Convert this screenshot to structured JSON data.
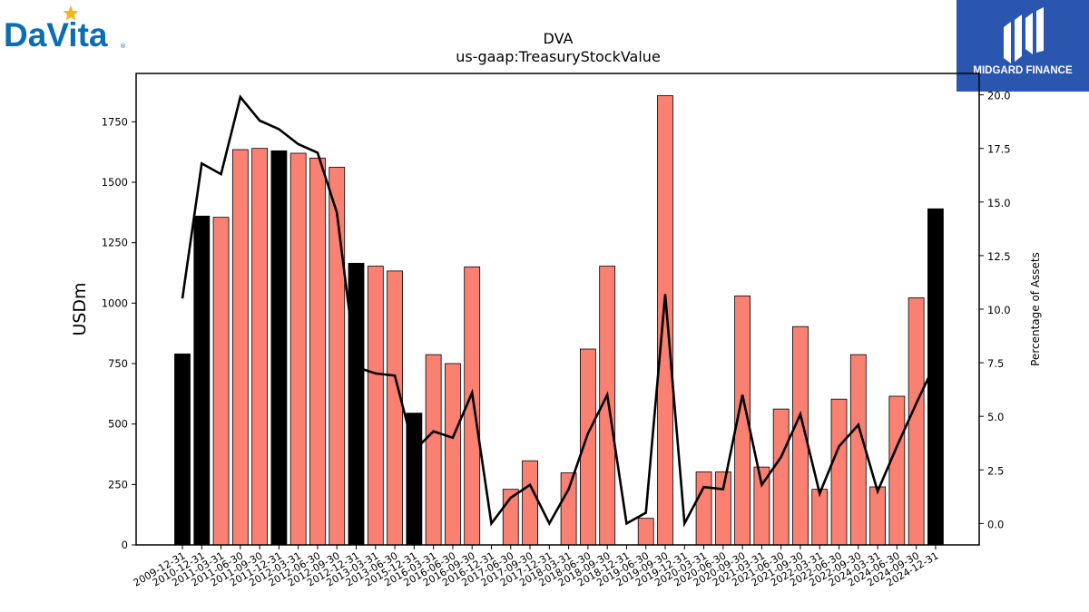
{
  "logos": {
    "left_text": "DaVita",
    "right_text": "MIDGARD FINANCE"
  },
  "colors": {
    "bar_normal": "#fa8072",
    "bar_highlight": "#000000",
    "line": "#000000",
    "brand_blue": "#0a6db5",
    "brand_star": "#f5b41a",
    "midgard_bg": "#2a56b0"
  },
  "chart_data": {
    "type": "bar",
    "title": "DVA",
    "subtitle": "us-gaap:TreasuryStockValue",
    "ylabel": "USDm",
    "y2label": "Percentage of Assets",
    "ylim": [
      0,
      1950
    ],
    "y2lim": [
      -1.0,
      21.0
    ],
    "yticks": [
      0,
      250,
      500,
      750,
      1000,
      1250,
      1500,
      1750
    ],
    "y2ticks": [
      0.0,
      2.5,
      5.0,
      7.5,
      10.0,
      12.5,
      15.0,
      17.5,
      20.0
    ],
    "y2tick_labels": [
      "0.0",
      "2.5",
      "5.0",
      "7.5",
      "10.0",
      "12.5",
      "15.0",
      "17.5",
      "20.0"
    ],
    "grid": false,
    "categories": [
      "2009-12-31",
      "2010-12-31",
      "2011-03-31",
      "2011-06-30",
      "2011-09-30",
      "2011-12-31",
      "2012-03-31",
      "2012-06-30",
      "2012-09-30",
      "2012-12-31",
      "2013-03-31",
      "2013-06-30",
      "2015-12-31",
      "2016-03-31",
      "2016-06-30",
      "2016-09-30",
      "2016-12-31",
      "2017-06-30",
      "2017-09-30",
      "2017-12-31",
      "2018-03-31",
      "2018-06-30",
      "2018-09-30",
      "2018-12-31",
      "2019-06-30",
      "2019-09-30",
      "2019-12-31",
      "2020-03-31",
      "2020-06-30",
      "2020-09-30",
      "2021-03-31",
      "2021-06-30",
      "2021-09-30",
      "2022-03-31",
      "2022-06-30",
      "2022-09-30",
      "2024-03-31",
      "2024-06-30",
      "2024-09-30",
      "2024-12-31"
    ],
    "series": [
      {
        "axis": "left",
        "kind": "bar",
        "values": [
          790,
          1360,
          1355,
          1635,
          1640,
          1630,
          1620,
          1600,
          1562,
          1165,
          1153,
          1133,
          545,
          787,
          750,
          1150,
          0,
          230,
          348,
          0,
          298,
          810,
          1153,
          0,
          110,
          1858,
          0,
          302,
          302,
          1030,
          322,
          562,
          903,
          230,
          603,
          787,
          240,
          615,
          1022,
          1390
        ],
        "highlight": [
          true,
          true,
          false,
          false,
          false,
          true,
          false,
          false,
          false,
          true,
          false,
          false,
          true,
          false,
          false,
          false,
          false,
          false,
          false,
          false,
          false,
          false,
          false,
          false,
          false,
          false,
          false,
          false,
          false,
          false,
          false,
          false,
          false,
          false,
          false,
          false,
          false,
          false,
          false,
          true
        ]
      },
      {
        "axis": "right",
        "kind": "line",
        "values": [
          10.5,
          16.8,
          16.3,
          19.9,
          18.8,
          18.4,
          17.7,
          17.3,
          14.5,
          7.3,
          7.0,
          6.9,
          3.4,
          4.3,
          4.0,
          6.1,
          0.0,
          1.2,
          1.8,
          0.0,
          1.6,
          4.2,
          6.0,
          0.0,
          0.5,
          10.7,
          0.0,
          1.7,
          1.6,
          6.0,
          1.8,
          3.1,
          5.1,
          1.4,
          3.6,
          4.6,
          1.5,
          3.6,
          5.6,
          7.5
        ]
      }
    ]
  }
}
